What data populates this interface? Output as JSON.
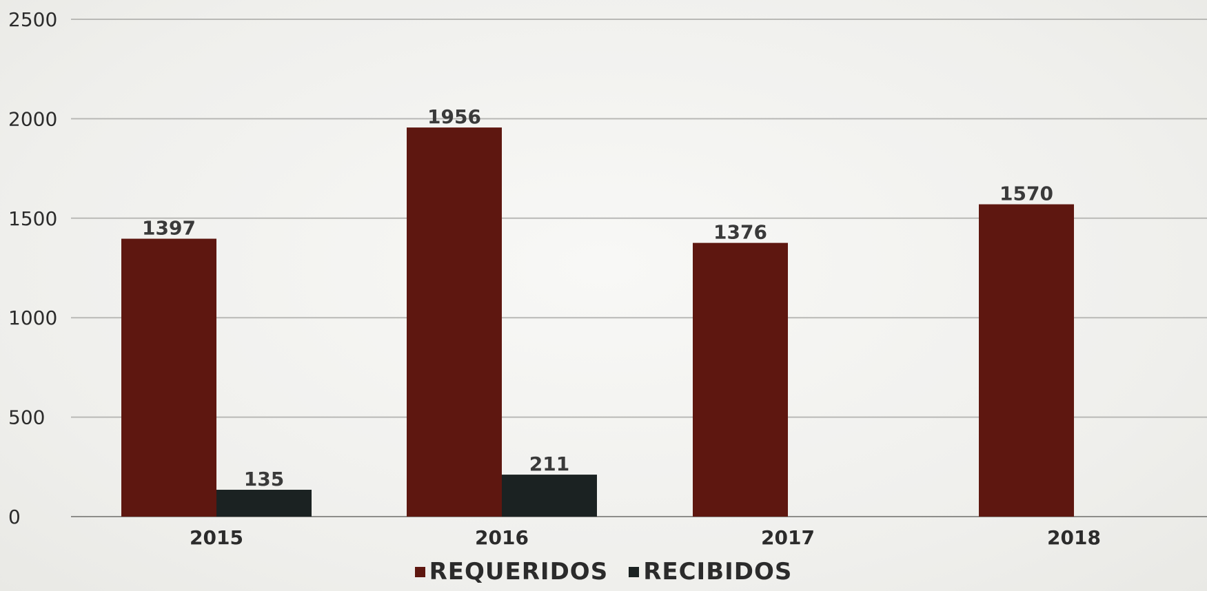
{
  "chart_data": {
    "type": "bar",
    "categories": [
      "2015",
      "2016",
      "2017",
      "2018"
    ],
    "series": [
      {
        "name": "REQUERIDOS",
        "values": [
          1397,
          1956,
          1376,
          1570
        ],
        "color": "#5e1710"
      },
      {
        "name": "RECIBIDOS",
        "values": [
          135,
          211,
          null,
          null
        ],
        "color": "#1b2222"
      }
    ],
    "ylim": [
      0,
      2500
    ],
    "yticks": [
      0,
      500,
      1000,
      1500,
      2000,
      2500
    ],
    "grid": true,
    "legend_position": "bottom",
    "data_labels": true
  }
}
